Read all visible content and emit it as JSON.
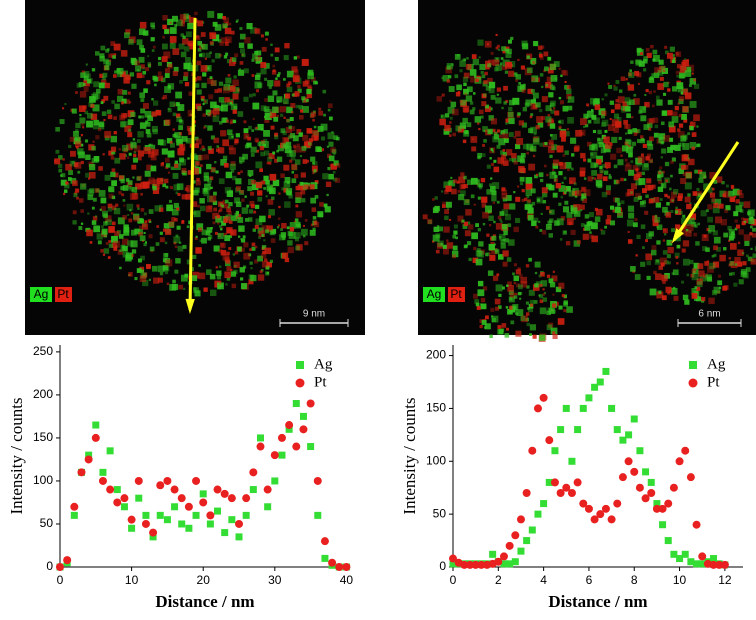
{
  "images": [
    {
      "labels": [
        "Ag",
        "Pt"
      ],
      "scale_bar": "9 nm"
    },
    {
      "labels": [
        "Ag",
        "Pt"
      ],
      "scale_bar": "6 nm"
    }
  ],
  "chart_data": [
    {
      "type": "scatter",
      "xlabel": "Distance / nm",
      "ylabel": "Intensity / counts",
      "x": [
        0,
        1,
        2,
        3,
        4,
        5,
        6,
        7,
        8,
        9,
        10,
        11,
        12,
        13,
        14,
        15,
        16,
        17,
        18,
        19,
        20,
        21,
        22,
        23,
        24,
        25,
        26,
        27,
        28,
        29,
        30,
        31,
        32,
        33,
        34,
        35,
        36,
        37,
        38,
        39,
        40
      ],
      "series": [
        {
          "name": "Ag",
          "color": "#33dd33",
          "marker": "square",
          "values": [
            0,
            5,
            60,
            110,
            130,
            165,
            110,
            135,
            90,
            70,
            45,
            80,
            60,
            35,
            60,
            55,
            70,
            50,
            45,
            60,
            85,
            50,
            65,
            40,
            55,
            35,
            60,
            90,
            150,
            70,
            100,
            130,
            160,
            190,
            175,
            140,
            60,
            10,
            2,
            0,
            0
          ]
        },
        {
          "name": "Pt",
          "color": "#e82020",
          "marker": "circle",
          "values": [
            0,
            8,
            70,
            110,
            125,
            150,
            100,
            90,
            75,
            80,
            55,
            100,
            50,
            40,
            95,
            100,
            90,
            80,
            70,
            100,
            75,
            60,
            90,
            85,
            80,
            50,
            80,
            110,
            140,
            90,
            130,
            150,
            165,
            140,
            160,
            190,
            100,
            30,
            5,
            0,
            0
          ]
        }
      ],
      "xlim": [
        0,
        40.5
      ],
      "xticks": [
        0,
        10,
        20,
        30,
        40
      ],
      "ylim": [
        0,
        258
      ],
      "yticks": [
        0,
        50,
        100,
        150,
        200,
        250
      ],
      "legend": "upper right"
    },
    {
      "type": "scatter",
      "xlabel": "Distance / nm",
      "ylabel": "Intensity / counts",
      "x": [
        0,
        0.25,
        0.5,
        0.75,
        1,
        1.25,
        1.5,
        1.75,
        2,
        2.25,
        2.5,
        2.75,
        3,
        3.25,
        3.5,
        3.75,
        4,
        4.25,
        4.5,
        4.75,
        5,
        5.25,
        5.5,
        5.75,
        6,
        6.25,
        6.5,
        6.75,
        7,
        7.25,
        7.5,
        7.75,
        8,
        8.25,
        8.5,
        8.75,
        9,
        9.25,
        9.5,
        9.75,
        10,
        10.25,
        10.5,
        10.75,
        11,
        11.25,
        11.5,
        11.75,
        12
      ],
      "series": [
        {
          "name": "Ag",
          "color": "#33dd33",
          "marker": "square",
          "values": [
            3,
            3,
            3,
            3,
            3,
            3,
            3,
            12,
            5,
            3,
            3,
            5,
            15,
            25,
            35,
            50,
            60,
            80,
            110,
            130,
            150,
            100,
            130,
            150,
            160,
            170,
            175,
            185,
            150,
            130,
            120,
            125,
            140,
            110,
            90,
            80,
            60,
            40,
            25,
            12,
            8,
            12,
            5,
            3,
            3,
            5,
            8,
            3,
            2
          ]
        },
        {
          "name": "Pt",
          "color": "#e82020",
          "marker": "circle",
          "values": [
            8,
            4,
            2,
            2,
            2,
            2,
            2,
            3,
            5,
            10,
            20,
            30,
            45,
            70,
            110,
            150,
            160,
            120,
            80,
            70,
            75,
            70,
            80,
            60,
            55,
            45,
            50,
            55,
            45,
            60,
            85,
            100,
            90,
            75,
            65,
            70,
            55,
            55,
            60,
            75,
            100,
            110,
            85,
            40,
            10,
            3,
            2,
            2,
            2
          ]
        }
      ],
      "xlim": [
        0,
        12.8
      ],
      "xticks": [
        0,
        2,
        4,
        6,
        8,
        10,
        12
      ],
      "ylim": [
        0,
        210
      ],
      "yticks": [
        0,
        50,
        100,
        150,
        200
      ],
      "legend": "upper right"
    }
  ]
}
